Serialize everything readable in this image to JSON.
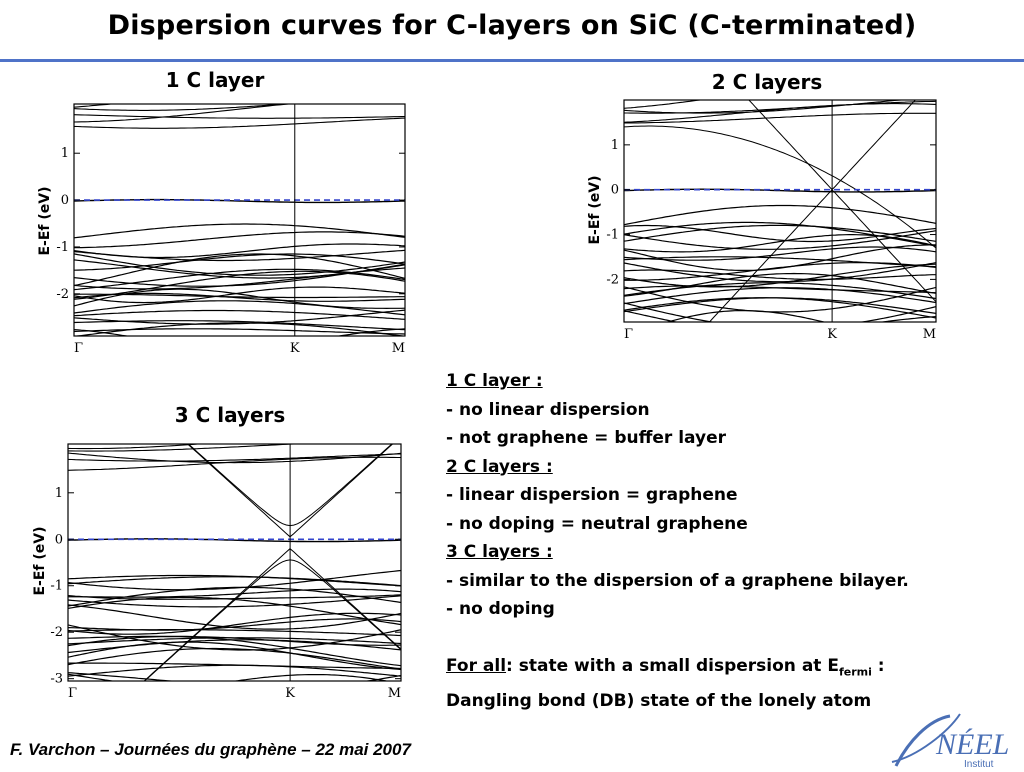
{
  "slide": {
    "title": "Dispersion curves for C-layers on SiC (C-terminated)"
  },
  "panels": [
    {
      "title": "1 C layer",
      "ylabel": "E-Ef (eV)"
    },
    {
      "title": "2 C layers",
      "ylabel": "E-Ef (eV)"
    },
    {
      "title": "3 C layers",
      "ylabel": "E-Ef (eV)"
    }
  ],
  "notes": {
    "l1": "1 C layer :",
    "l2": "- no linear dispersion",
    "l3": "- not graphene = buffer layer",
    "l4": "2 C layers :",
    "l5": "- linear dispersion = graphene",
    "l6": "- no doping = neutral graphene",
    "l7": "3 C layers :",
    "l8": "- similar to the dispersion of a graphene bilayer.",
    "l9": "- no doping",
    "l10_prefix": "For all",
    "l10_rest": ": state with a small dispersion at E",
    "l10_sub": "fermi",
    "l10_end": " :",
    "l11": "Dangling bond (DB) state of the lonely atom"
  },
  "footer": {
    "text": "F. Varchon – Journées du graphène – 22 mai 2007"
  },
  "logo": {
    "main": "NÉEL",
    "sub": "Institut",
    "color": "#4a6fb5"
  },
  "chart_data": [
    {
      "type": "line",
      "title": "1 C layer",
      "ylabel": "E-Ef (eV)",
      "x_ticks": [
        "Γ",
        "K",
        "M"
      ],
      "x_tick_positions": [
        0,
        0.667,
        1
      ],
      "y_ticks": [
        1,
        0,
        -1,
        -2
      ],
      "ylim": [
        -2.9,
        2.05
      ],
      "fermi_level": 0,
      "fermi_color": "#3344cc",
      "dirac_cone": "none",
      "db_state_energy": 0.0
    },
    {
      "type": "line",
      "title": "2 C layers",
      "ylabel": "E-Ef (eV)",
      "x_ticks": [
        "Γ",
        "K",
        "M"
      ],
      "x_tick_positions": [
        0,
        0.667,
        1
      ],
      "y_ticks": [
        1,
        0,
        -1,
        -2
      ],
      "ylim": [
        -2.95,
        2.0
      ],
      "fermi_level": 0,
      "fermi_color": "#3344cc",
      "dirac_cone": "linear",
      "dirac_point_energy": 0.0,
      "db_state_energy": 0.0
    },
    {
      "type": "line",
      "title": "3 C layers",
      "ylabel": "E-Ef (eV)",
      "x_ticks": [
        "Γ",
        "K",
        "M"
      ],
      "x_tick_positions": [
        0,
        0.667,
        1
      ],
      "y_ticks": [
        1,
        0,
        -1,
        -2,
        -3
      ],
      "ylim": [
        -3.05,
        2.05
      ],
      "fermi_level": 0,
      "fermi_color": "#3344cc",
      "dirac_cone": "bilayer",
      "gap_edges": [
        0.05,
        -0.2
      ],
      "db_state_energy": 0.0
    }
  ]
}
